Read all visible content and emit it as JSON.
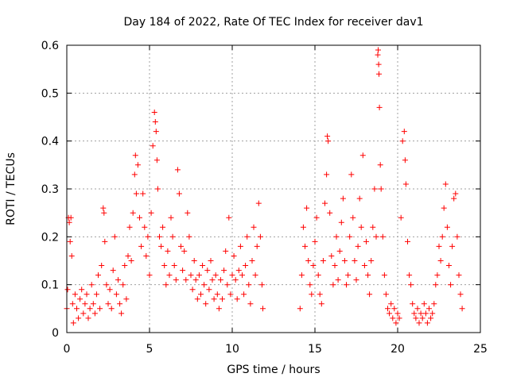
{
  "chart_data": {
    "type": "scatter",
    "title": "Day 184 of 2022, Rate Of TEC Index for receiver dav1",
    "xlabel": "GPS time / hours",
    "ylabel": "ROTI / TECUs",
    "xlim": [
      0,
      25
    ],
    "ylim": [
      0,
      0.6
    ],
    "xticks": [
      0,
      5,
      10,
      15,
      20,
      25
    ],
    "xtick_labels": [
      "0",
      "5",
      "10",
      "15",
      "20",
      "25"
    ],
    "yticks": [
      0,
      0.1,
      0.2,
      0.3,
      0.4,
      0.5,
      0.6
    ],
    "ytick_labels": [
      "0",
      "0.1",
      "0.2",
      "0.3",
      "0.4",
      "0.5",
      "0.6"
    ],
    "grid": true,
    "marker": "+",
    "marker_color": "#ff0000",
    "data_gap_hours": [
      11.9,
      14.1
    ],
    "series": [
      {
        "points": [
          [
            0.0,
            0.05
          ],
          [
            0.05,
            0.09
          ],
          [
            0.1,
            0.24
          ],
          [
            0.15,
            0.23
          ],
          [
            0.2,
            0.19
          ],
          [
            0.25,
            0.24
          ],
          [
            0.3,
            0.16
          ],
          [
            0.35,
            0.06
          ],
          [
            0.4,
            0.02
          ],
          [
            0.5,
            0.08
          ],
          [
            0.6,
            0.05
          ],
          [
            0.7,
            0.03
          ],
          [
            0.8,
            0.07
          ],
          [
            0.9,
            0.09
          ],
          [
            1.0,
            0.04
          ],
          [
            1.1,
            0.06
          ],
          [
            1.2,
            0.08
          ],
          [
            1.3,
            0.03
          ],
          [
            1.4,
            0.05
          ],
          [
            1.5,
            0.1
          ],
          [
            1.6,
            0.06
          ],
          [
            1.7,
            0.04
          ],
          [
            1.8,
            0.08
          ],
          [
            1.9,
            0.12
          ],
          [
            2.0,
            0.05
          ],
          [
            2.1,
            0.14
          ],
          [
            2.2,
            0.26
          ],
          [
            2.25,
            0.25
          ],
          [
            2.3,
            0.19
          ],
          [
            2.4,
            0.1
          ],
          [
            2.5,
            0.06
          ],
          [
            2.6,
            0.09
          ],
          [
            2.7,
            0.05
          ],
          [
            2.8,
            0.13
          ],
          [
            2.9,
            0.2
          ],
          [
            3.0,
            0.08
          ],
          [
            3.1,
            0.11
          ],
          [
            3.2,
            0.06
          ],
          [
            3.3,
            0.04
          ],
          [
            3.4,
            0.1
          ],
          [
            3.5,
            0.14
          ],
          [
            3.6,
            0.07
          ],
          [
            3.7,
            0.16
          ],
          [
            3.8,
            0.22
          ],
          [
            3.9,
            0.15
          ],
          [
            4.0,
            0.25
          ],
          [
            4.1,
            0.33
          ],
          [
            4.15,
            0.37
          ],
          [
            4.2,
            0.29
          ],
          [
            4.3,
            0.35
          ],
          [
            4.4,
            0.24
          ],
          [
            4.5,
            0.18
          ],
          [
            4.6,
            0.29
          ],
          [
            4.7,
            0.22
          ],
          [
            4.8,
            0.16
          ],
          [
            4.9,
            0.2
          ],
          [
            5.0,
            0.12
          ],
          [
            5.1,
            0.25
          ],
          [
            5.2,
            0.39
          ],
          [
            5.3,
            0.46
          ],
          [
            5.35,
            0.44
          ],
          [
            5.4,
            0.42
          ],
          [
            5.45,
            0.36
          ],
          [
            5.5,
            0.3
          ],
          [
            5.6,
            0.2
          ],
          [
            5.7,
            0.18
          ],
          [
            5.8,
            0.22
          ],
          [
            5.9,
            0.14
          ],
          [
            6.0,
            0.1
          ],
          [
            6.1,
            0.17
          ],
          [
            6.2,
            0.12
          ],
          [
            6.3,
            0.24
          ],
          [
            6.4,
            0.2
          ],
          [
            6.5,
            0.14
          ],
          [
            6.6,
            0.11
          ],
          [
            6.7,
            0.34
          ],
          [
            6.8,
            0.29
          ],
          [
            6.9,
            0.18
          ],
          [
            7.0,
            0.13
          ],
          [
            7.1,
            0.17
          ],
          [
            7.2,
            0.11
          ],
          [
            7.3,
            0.25
          ],
          [
            7.4,
            0.2
          ],
          [
            7.5,
            0.12
          ],
          [
            7.6,
            0.09
          ],
          [
            7.7,
            0.15
          ],
          [
            7.8,
            0.11
          ],
          [
            7.9,
            0.07
          ],
          [
            8.0,
            0.12
          ],
          [
            8.1,
            0.08
          ],
          [
            8.2,
            0.14
          ],
          [
            8.3,
            0.1
          ],
          [
            8.4,
            0.06
          ],
          [
            8.5,
            0.13
          ],
          [
            8.6,
            0.09
          ],
          [
            8.7,
            0.15
          ],
          [
            8.8,
            0.11
          ],
          [
            8.9,
            0.07
          ],
          [
            9.0,
            0.12
          ],
          [
            9.1,
            0.08
          ],
          [
            9.2,
            0.05
          ],
          [
            9.3,
            0.11
          ],
          [
            9.4,
            0.07
          ],
          [
            9.5,
            0.13
          ],
          [
            9.6,
            0.17
          ],
          [
            9.7,
            0.1
          ],
          [
            9.8,
            0.24
          ],
          [
            9.9,
            0.08
          ],
          [
            10.0,
            0.12
          ],
          [
            10.1,
            0.16
          ],
          [
            10.2,
            0.11
          ],
          [
            10.3,
            0.07
          ],
          [
            10.4,
            0.13
          ],
          [
            10.5,
            0.18
          ],
          [
            10.6,
            0.12
          ],
          [
            10.7,
            0.08
          ],
          [
            10.8,
            0.14
          ],
          [
            10.9,
            0.2
          ],
          [
            11.0,
            0.1
          ],
          [
            11.1,
            0.06
          ],
          [
            11.2,
            0.15
          ],
          [
            11.3,
            0.22
          ],
          [
            11.4,
            0.12
          ],
          [
            11.5,
            0.18
          ],
          [
            11.6,
            0.27
          ],
          [
            11.7,
            0.2
          ],
          [
            11.8,
            0.1
          ],
          [
            11.85,
            0.05
          ],
          [
            14.1,
            0.05
          ],
          [
            14.2,
            0.12
          ],
          [
            14.3,
            0.22
          ],
          [
            14.4,
            0.18
          ],
          [
            14.5,
            0.26
          ],
          [
            14.6,
            0.15
          ],
          [
            14.7,
            0.1
          ],
          [
            14.8,
            0.08
          ],
          [
            14.9,
            0.14
          ],
          [
            15.0,
            0.19
          ],
          [
            15.1,
            0.24
          ],
          [
            15.2,
            0.12
          ],
          [
            15.3,
            0.08
          ],
          [
            15.4,
            0.06
          ],
          [
            15.5,
            0.15
          ],
          [
            15.6,
            0.27
          ],
          [
            15.7,
            0.33
          ],
          [
            15.75,
            0.41
          ],
          [
            15.8,
            0.4
          ],
          [
            15.9,
            0.25
          ],
          [
            16.0,
            0.16
          ],
          [
            16.1,
            0.1
          ],
          [
            16.2,
            0.14
          ],
          [
            16.3,
            0.2
          ],
          [
            16.4,
            0.11
          ],
          [
            16.5,
            0.17
          ],
          [
            16.6,
            0.23
          ],
          [
            16.7,
            0.28
          ],
          [
            16.8,
            0.15
          ],
          [
            16.9,
            0.1
          ],
          [
            17.0,
            0.12
          ],
          [
            17.1,
            0.2
          ],
          [
            17.2,
            0.33
          ],
          [
            17.3,
            0.24
          ],
          [
            17.4,
            0.15
          ],
          [
            17.5,
            0.11
          ],
          [
            17.6,
            0.18
          ],
          [
            17.7,
            0.28
          ],
          [
            17.8,
            0.22
          ],
          [
            17.9,
            0.37
          ],
          [
            18.0,
            0.14
          ],
          [
            18.1,
            0.19
          ],
          [
            18.2,
            0.12
          ],
          [
            18.3,
            0.08
          ],
          [
            18.4,
            0.15
          ],
          [
            18.5,
            0.22
          ],
          [
            18.6,
            0.3
          ],
          [
            18.7,
            0.2
          ],
          [
            18.8,
            0.58
          ],
          [
            18.82,
            0.59
          ],
          [
            18.85,
            0.56
          ],
          [
            18.87,
            0.54
          ],
          [
            18.9,
            0.47
          ],
          [
            18.95,
            0.35
          ],
          [
            19.0,
            0.3
          ],
          [
            19.1,
            0.2
          ],
          [
            19.2,
            0.12
          ],
          [
            19.3,
            0.08
          ],
          [
            19.4,
            0.05
          ],
          [
            19.5,
            0.04
          ],
          [
            19.6,
            0.06
          ],
          [
            19.7,
            0.03
          ],
          [
            19.8,
            0.05
          ],
          [
            19.9,
            0.02
          ],
          [
            20.0,
            0.04
          ],
          [
            20.1,
            0.03
          ],
          [
            20.2,
            0.24
          ],
          [
            20.3,
            0.4
          ],
          [
            20.4,
            0.42
          ],
          [
            20.45,
            0.36
          ],
          [
            20.5,
            0.31
          ],
          [
            20.6,
            0.19
          ],
          [
            20.7,
            0.12
          ],
          [
            20.8,
            0.1
          ],
          [
            20.9,
            0.06
          ],
          [
            21.0,
            0.04
          ],
          [
            21.1,
            0.03
          ],
          [
            21.2,
            0.05
          ],
          [
            21.3,
            0.02
          ],
          [
            21.4,
            0.04
          ],
          [
            21.5,
            0.03
          ],
          [
            21.6,
            0.06
          ],
          [
            21.7,
            0.04
          ],
          [
            21.8,
            0.02
          ],
          [
            21.9,
            0.05
          ],
          [
            22.0,
            0.03
          ],
          [
            22.1,
            0.04
          ],
          [
            22.2,
            0.06
          ],
          [
            22.3,
            0.1
          ],
          [
            22.4,
            0.12
          ],
          [
            22.5,
            0.18
          ],
          [
            22.6,
            0.15
          ],
          [
            22.7,
            0.2
          ],
          [
            22.8,
            0.26
          ],
          [
            22.9,
            0.31
          ],
          [
            23.0,
            0.22
          ],
          [
            23.1,
            0.14
          ],
          [
            23.2,
            0.1
          ],
          [
            23.3,
            0.18
          ],
          [
            23.4,
            0.28
          ],
          [
            23.5,
            0.29
          ],
          [
            23.6,
            0.2
          ],
          [
            23.7,
            0.12
          ],
          [
            23.8,
            0.08
          ],
          [
            23.9,
            0.05
          ]
        ]
      }
    ]
  }
}
